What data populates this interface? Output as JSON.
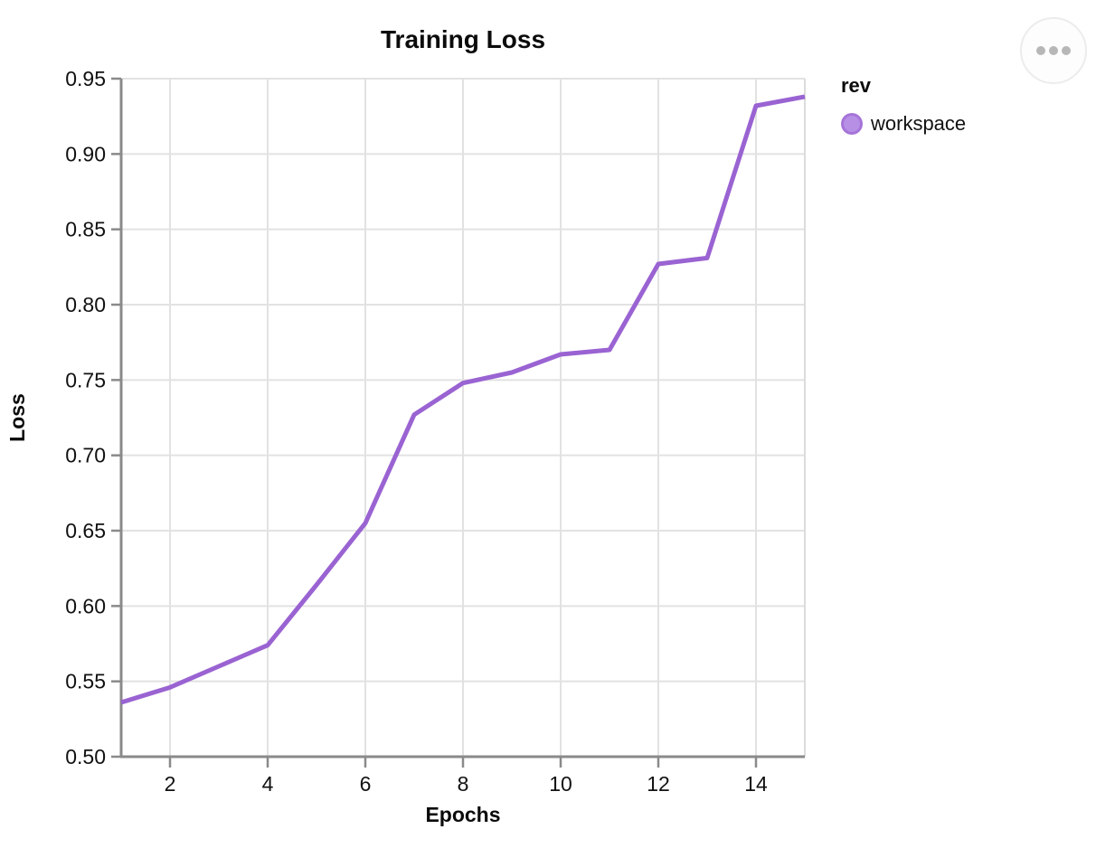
{
  "chart_data": {
    "type": "line",
    "title": "Training Loss",
    "xlabel": "Epochs",
    "ylabel": "Loss",
    "legend_title": "rev",
    "legend_position": "right",
    "grid": true,
    "xlim": [
      1,
      15
    ],
    "ylim": [
      0.5,
      0.95
    ],
    "xticks": [
      2,
      4,
      6,
      8,
      10,
      12,
      14
    ],
    "yticks": [
      0.5,
      0.55,
      0.6,
      0.65,
      0.7,
      0.75,
      0.8,
      0.85,
      0.9,
      0.95
    ],
    "x": [
      1,
      2,
      3,
      4,
      5,
      6,
      7,
      8,
      9,
      10,
      11,
      12,
      13,
      14,
      15
    ],
    "series": [
      {
        "name": "workspace",
        "color": "#9a63d2",
        "marker_fill": "#b78fe4",
        "values": [
          0.536,
          0.546,
          0.56,
          0.574,
          0.614,
          0.655,
          0.727,
          0.748,
          0.755,
          0.767,
          0.77,
          0.827,
          0.831,
          0.932,
          0.938
        ]
      }
    ],
    "colors": {
      "gridline": "#e2e2e2",
      "axis_domain": "#8a8a8a",
      "right_border": "#dcdcdc",
      "tick_text": "#111111"
    }
  },
  "menu_button": {
    "icon": "ellipsis"
  }
}
